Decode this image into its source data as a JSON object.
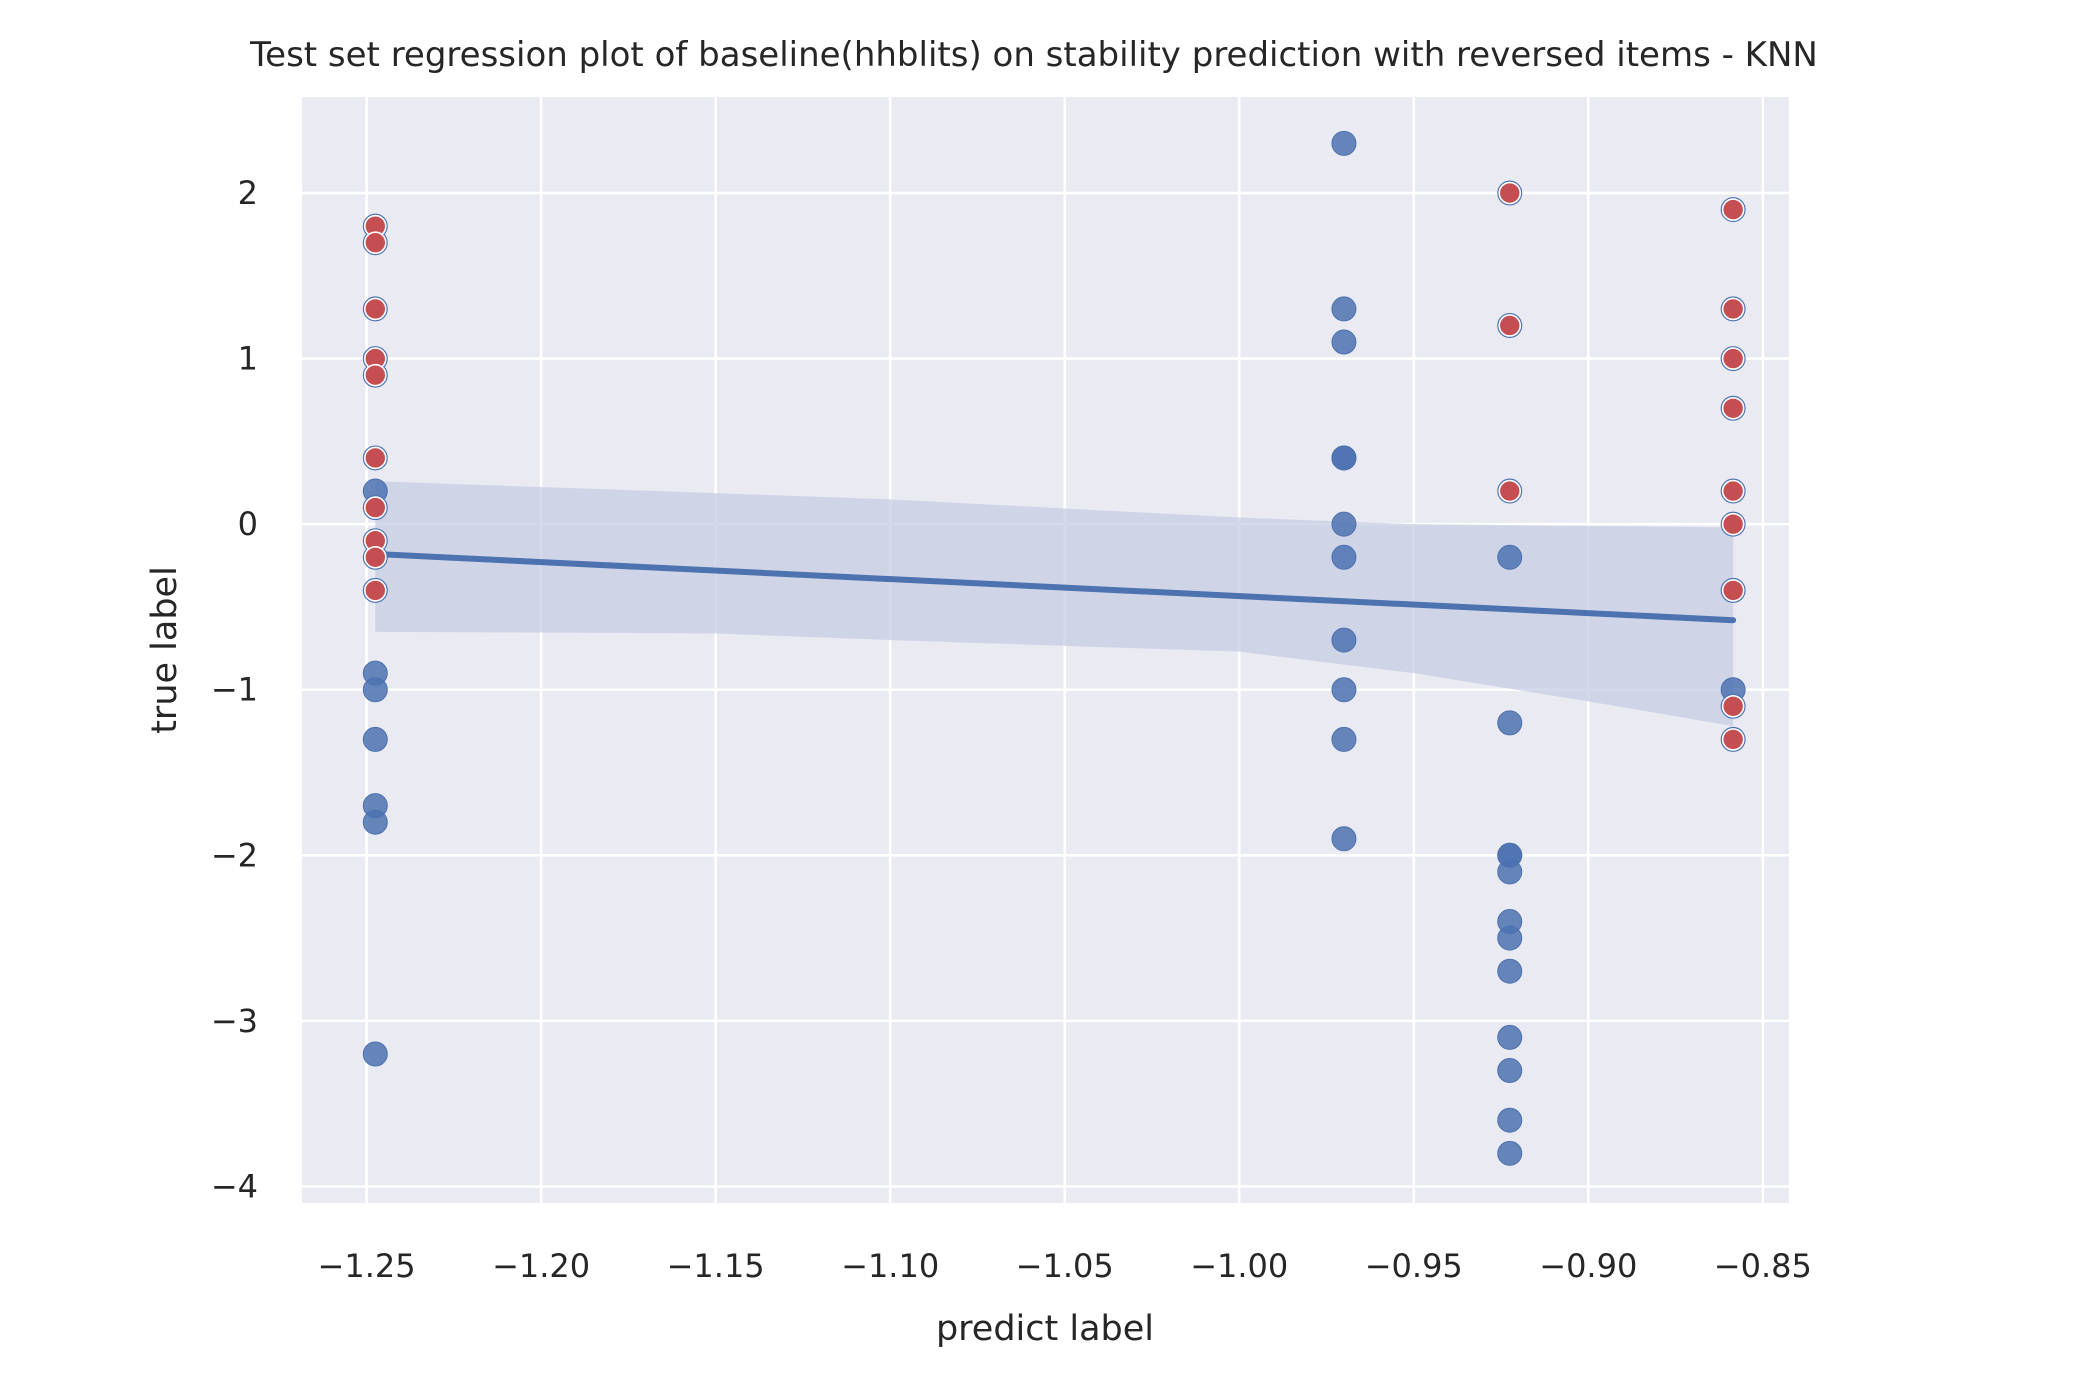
{
  "chart_data": {
    "type": "scatter",
    "title": "Test set regression plot of baseline(hhblits) on stability prediction with reversed items - KNN",
    "xlabel": "predict label",
    "ylabel": "true label",
    "xlim": [
      -1.2685,
      -0.8425
    ],
    "ylim": [
      -4.1,
      2.58
    ],
    "x_ticks": [
      -1.25,
      -1.2,
      -1.15,
      -1.1,
      -1.05,
      -1.0,
      -0.95,
      -0.9,
      -0.85
    ],
    "x_tick_labels": [
      "−1.25",
      "−1.20",
      "−1.15",
      "−1.10",
      "−1.05",
      "−1.00",
      "−0.95",
      "−0.90",
      "−0.85"
    ],
    "y_ticks": [
      -4,
      -3,
      -2,
      -1,
      0,
      1,
      2
    ],
    "y_tick_labels": [
      "−4",
      "−3",
      "−2",
      "−1",
      "0",
      "1",
      "2"
    ],
    "grid": true,
    "colors": {
      "background": "#eaeaf2",
      "series_primary": "#4c72b0",
      "series_reversed": "#c44e52",
      "confidence_band": "#c5cde3"
    },
    "series": [
      {
        "color": "#4c72b0",
        "points": [
          [
            -1.2475,
            1.8
          ],
          [
            -1.2475,
            1.7
          ],
          [
            -1.2475,
            1.3
          ],
          [
            -1.2475,
            1.0
          ],
          [
            -1.2475,
            0.9
          ],
          [
            -1.2475,
            0.4
          ],
          [
            -1.2475,
            0.2
          ],
          [
            -1.2475,
            0.1
          ],
          [
            -1.2475,
            -0.1
          ],
          [
            -1.2475,
            -0.2
          ],
          [
            -1.2475,
            -0.4
          ],
          [
            -1.2475,
            -0.9
          ],
          [
            -1.2475,
            -1.0
          ],
          [
            -1.2475,
            -1.3
          ],
          [
            -1.2475,
            -1.7
          ],
          [
            -1.2475,
            -1.8
          ],
          [
            -1.2475,
            -3.2
          ],
          [
            -0.97,
            2.3
          ],
          [
            -0.97,
            1.3
          ],
          [
            -0.97,
            1.1
          ],
          [
            -0.97,
            0.4
          ],
          [
            -0.97,
            0.4
          ],
          [
            -0.97,
            0.0
          ],
          [
            -0.97,
            -0.2
          ],
          [
            -0.97,
            -0.7
          ],
          [
            -0.97,
            -1.0
          ],
          [
            -0.97,
            -1.3
          ],
          [
            -0.97,
            -1.9
          ],
          [
            -0.9225,
            2.0
          ],
          [
            -0.9225,
            1.2
          ],
          [
            -0.9225,
            0.2
          ],
          [
            -0.9225,
            -0.2
          ],
          [
            -0.9225,
            -1.2
          ],
          [
            -0.9225,
            -2.0
          ],
          [
            -0.9225,
            -2.0
          ],
          [
            -0.9225,
            -2.1
          ],
          [
            -0.9225,
            -2.4
          ],
          [
            -0.9225,
            -2.5
          ],
          [
            -0.9225,
            -2.7
          ],
          [
            -0.9225,
            -3.1
          ],
          [
            -0.9225,
            -3.3
          ],
          [
            -0.9225,
            -3.6
          ],
          [
            -0.9225,
            -3.8
          ],
          [
            -0.8585,
            1.9
          ],
          [
            -0.8585,
            1.3
          ],
          [
            -0.8585,
            1.0
          ],
          [
            -0.8585,
            0.7
          ],
          [
            -0.8585,
            0.2
          ],
          [
            -0.8585,
            0.0
          ],
          [
            -0.8585,
            -0.4
          ],
          [
            -0.8585,
            -1.0
          ],
          [
            -0.8585,
            -1.1
          ],
          [
            -0.8585,
            -1.3
          ]
        ]
      },
      {
        "color": "#c44e52",
        "points": [
          [
            -1.2475,
            1.8
          ],
          [
            -1.2475,
            1.7
          ],
          [
            -1.2475,
            1.3
          ],
          [
            -1.2475,
            1.0
          ],
          [
            -1.2475,
            0.9
          ],
          [
            -1.2475,
            0.4
          ],
          [
            -1.2475,
            0.1
          ],
          [
            -1.2475,
            -0.1
          ],
          [
            -1.2475,
            -0.2
          ],
          [
            -1.2475,
            -0.4
          ],
          [
            -0.9225,
            2.0
          ],
          [
            -0.9225,
            1.2
          ],
          [
            -0.9225,
            0.2
          ],
          [
            -0.8585,
            1.9
          ],
          [
            -0.8585,
            1.3
          ],
          [
            -0.8585,
            1.0
          ],
          [
            -0.8585,
            0.7
          ],
          [
            -0.8585,
            0.2
          ],
          [
            -0.8585,
            0.0
          ],
          [
            -0.8585,
            -0.4
          ],
          [
            -0.8585,
            -1.1
          ],
          [
            -0.8585,
            -1.3
          ]
        ]
      }
    ],
    "regression_line": {
      "color": "#4c72b0",
      "points": [
        [
          -1.2475,
          -0.18
        ],
        [
          -0.8585,
          -0.58
        ]
      ]
    },
    "confidence_band": {
      "color": "#c5cde3",
      "upper": [
        [
          -1.2475,
          0.26
        ],
        [
          -1.1,
          0.15
        ],
        [
          -1.0,
          0.04
        ],
        [
          -0.95,
          0.0
        ],
        [
          -0.9,
          -0.01
        ],
        [
          -0.8585,
          -0.02
        ]
      ],
      "lower": [
        [
          -1.2475,
          -0.65
        ],
        [
          -1.15,
          -0.66
        ],
        [
          -1.1,
          -0.7
        ],
        [
          -1.0,
          -0.77
        ],
        [
          -0.95,
          -0.9
        ],
        [
          -0.9,
          -1.07
        ],
        [
          -0.8585,
          -1.22
        ]
      ]
    }
  }
}
